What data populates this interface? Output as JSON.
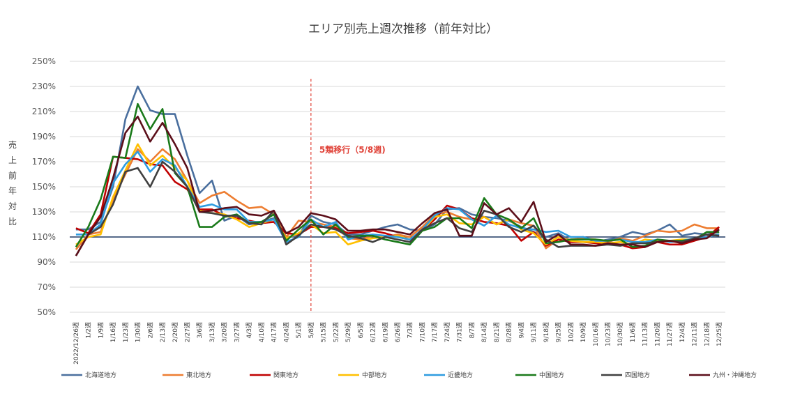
{
  "chart_data": {
    "type": "line",
    "title": "エリア別売上週次推移（前年対比）",
    "ylabel": "売上前年対比",
    "ylim": [
      50,
      250
    ],
    "yticks": [
      "50%",
      "70%",
      "90%",
      "110%",
      "130%",
      "150%",
      "170%",
      "190%",
      "210%",
      "230%",
      "250%"
    ],
    "reference_line": {
      "y": 110,
      "color": "#1f3864"
    },
    "annotation": {
      "label": "5類移行（5/8週)",
      "x_index": 19,
      "color": "#e0443a"
    },
    "grid": true,
    "legend_position": "bottom",
    "categories": [
      "2022/12/26週",
      "1/2週",
      "1/9週",
      "1/16週",
      "1/23週",
      "1/30週",
      "2/6週",
      "2/13週",
      "2/20週",
      "2/27週",
      "3/6週",
      "3/13週",
      "3/20週",
      "3/27週",
      "4/3週",
      "4/10週",
      "4/17週",
      "4/24週",
      "5/1週",
      "5/8週",
      "5/15週",
      "5/22週",
      "5/29週",
      "6/5週",
      "6/12週",
      "6/19週",
      "6/26週",
      "7/3週",
      "7/10週",
      "7/17週",
      "7/24週",
      "7/31週",
      "8/7週",
      "8/14週",
      "8/21週",
      "8/28週",
      "9/4週",
      "9/11週",
      "9/18週",
      "9/25週",
      "10/2週",
      "10/9週",
      "10/16週",
      "10/23週",
      "10/30週",
      "11/6週",
      "11/13週",
      "11/20週",
      "11/27週",
      "12/4週",
      "12/11週",
      "12/18週",
      "12/25週"
    ],
    "series": [
      {
        "name": "北海道地方",
        "color": "#4a6f9e",
        "values": [
          116,
          116,
          122,
          150,
          204,
          230,
          211,
          208,
          208,
          175,
          145,
          155,
          123,
          127,
          120,
          122,
          125,
          110,
          111,
          127,
          122,
          120,
          112,
          112,
          115,
          118,
          120,
          116,
          115,
          120,
          132,
          133,
          128,
          126,
          125,
          123,
          118,
          114,
          110,
          113,
          107,
          110,
          106,
          108,
          110,
          114,
          112,
          115,
          120,
          111,
          113,
          112,
          114
        ]
      },
      {
        "name": "東北地方",
        "color": "#ed7d31",
        "values": [
          100,
          112,
          114,
          140,
          160,
          180,
          170,
          180,
          172,
          155,
          137,
          143,
          146,
          139,
          133,
          134,
          128,
          110,
          123,
          122,
          120,
          118,
          109,
          108,
          111,
          110,
          112,
          110,
          118,
          128,
          130,
          126,
          124,
          126,
          120,
          124,
          121,
          119,
          101,
          108,
          108,
          109,
          108,
          106,
          109,
          107,
          111,
          115,
          114,
          115,
          120,
          117,
          117
        ]
      },
      {
        "name": "関東地方",
        "color": "#c00000",
        "values": [
          117,
          113,
          128,
          174,
          173,
          172,
          168,
          167,
          154,
          148,
          132,
          132,
          127,
          125,
          123,
          121,
          122,
          113,
          112,
          118,
          118,
          117,
          113,
          114,
          115,
          113,
          110,
          108,
          115,
          124,
          135,
          132,
          125,
          122,
          121,
          119,
          107,
          114,
          103,
          108,
          106,
          106,
          105,
          104,
          104,
          101,
          102,
          106,
          104,
          104,
          107,
          110,
          118
        ]
      },
      {
        "name": "中部地方",
        "color": "#ffc000",
        "values": [
          104,
          110,
          112,
          142,
          163,
          184,
          167,
          175,
          165,
          155,
          131,
          129,
          128,
          124,
          118,
          121,
          124,
          109,
          113,
          120,
          113,
          114,
          104,
          107,
          109,
          110,
          111,
          108,
          115,
          126,
          128,
          121,
          120,
          126,
          120,
          124,
          116,
          113,
          104,
          110,
          107,
          106,
          106,
          105,
          106,
          104,
          108,
          107,
          107,
          108,
          108,
          110,
          112
        ]
      },
      {
        "name": "近畿地方",
        "color": "#2e9ce0",
        "values": [
          112,
          112,
          120,
          153,
          168,
          178,
          162,
          172,
          167,
          150,
          134,
          136,
          132,
          132,
          122,
          122,
          124,
          106,
          110,
          124,
          118,
          122,
          108,
          111,
          112,
          111,
          110,
          108,
          116,
          127,
          133,
          132,
          124,
          119,
          127,
          120,
          117,
          116,
          114,
          115,
          110,
          110,
          107,
          107,
          108,
          106,
          106,
          108,
          106,
          107,
          109,
          110,
          112
        ]
      },
      {
        "name": "中国地方",
        "color": "#1a7a1a",
        "values": [
          102,
          118,
          140,
          174,
          173,
          216,
          196,
          212,
          161,
          150,
          118,
          118,
          126,
          128,
          121,
          122,
          128,
          107,
          116,
          124,
          112,
          120,
          110,
          111,
          111,
          108,
          106,
          104,
          115,
          118,
          125,
          125,
          117,
          141,
          128,
          124,
          117,
          125,
          105,
          106,
          108,
          108,
          108,
          107,
          108,
          102,
          103,
          108,
          107,
          107,
          108,
          114,
          114
        ]
      },
      {
        "name": "四国地方",
        "color": "#404040",
        "values": [
          95,
          112,
          118,
          136,
          162,
          165,
          150,
          170,
          162,
          150,
          130,
          129,
          127,
          127,
          121,
          120,
          131,
          104,
          111,
          120,
          118,
          116,
          111,
          109,
          106,
          110,
          108,
          106,
          116,
          121,
          125,
          117,
          114,
          131,
          128,
          118,
          114,
          119,
          108,
          102,
          103,
          103,
          103,
          104,
          103,
          105,
          105,
          106,
          107,
          106,
          109,
          112,
          111
        ]
      },
      {
        "name": "九州・沖縄地方",
        "color": "#5c0f1a",
        "values": [
          95,
          112,
          126,
          157,
          193,
          206,
          186,
          201,
          184,
          165,
          130,
          131,
          133,
          134,
          128,
          127,
          131,
          113,
          118,
          129,
          127,
          124,
          115,
          115,
          116,
          116,
          114,
          112,
          121,
          129,
          132,
          111,
          111,
          137,
          128,
          133,
          122,
          138,
          106,
          112,
          104,
          104,
          103,
          105,
          104,
          104,
          102,
          106,
          107,
          105,
          108,
          109,
          116
        ]
      }
    ]
  }
}
